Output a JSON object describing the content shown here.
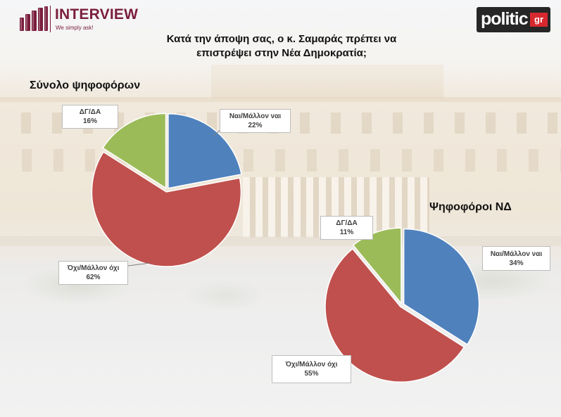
{
  "header": {
    "brand": {
      "name": "INTERVIEW",
      "tagline": "We simply ask!",
      "color": "#7a1e3c"
    },
    "partner_logo": {
      "main": "politic",
      "suffix": "gr",
      "accent": "#d7282f",
      "background": "#262626"
    }
  },
  "survey_question": [
    "Κατά την άποψη σας, ο κ. Σαμαράς πρέπει να",
    "επιστρέψει στην Νέα Δημοκρατία;"
  ],
  "chart_data": [
    {
      "type": "pie",
      "title": "Σύνολο ψηφοφόρων",
      "categories": [
        "Ναι/Μάλλον ναι",
        "Όχι/Μάλλον όχι",
        "ΔΓ/ΔΑ"
      ],
      "values": [
        22,
        62,
        16
      ],
      "data_labels": [
        "22%",
        "62%",
        "16%"
      ],
      "colors": [
        "#4f81bd",
        "#c0504d",
        "#9bbb59"
      ]
    },
    {
      "type": "pie",
      "title": "Ψηφοφόροι ΝΔ",
      "categories": [
        "Ναι/Μάλλον ναι",
        "Όχι/Μάλλον όχι",
        "ΔΓ/ΔΑ"
      ],
      "values": [
        34,
        55,
        11
      ],
      "data_labels": [
        "34%",
        "55%",
        "11%"
      ],
      "colors": [
        "#4f81bd",
        "#c0504d",
        "#9bbb59"
      ]
    }
  ]
}
